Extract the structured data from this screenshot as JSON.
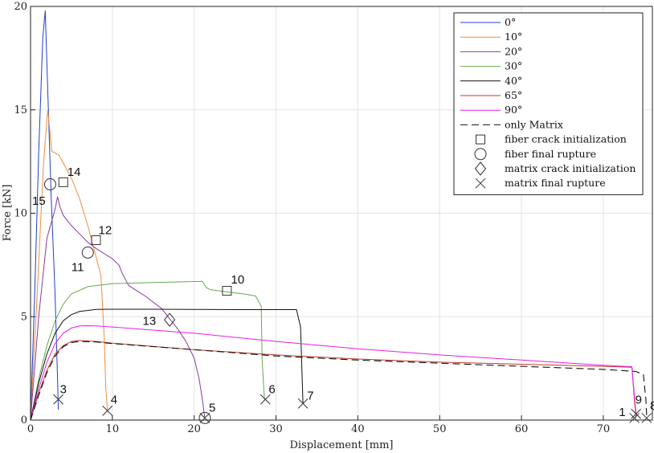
{
  "chart_data": {
    "type": "line",
    "xlabel": "Displacement [mm]",
    "ylabel": "Force [kN]",
    "xlim": [
      0,
      76
    ],
    "ylim": [
      0,
      20
    ],
    "xticks": [
      "0",
      "10",
      "20",
      "30",
      "40",
      "50",
      "60",
      "70"
    ],
    "yticks": [
      "0",
      "5",
      "10",
      "15",
      "20"
    ],
    "grid": true,
    "legend_position": "top-right",
    "series": [
      {
        "name": "0°",
        "color": "#1f3fcf",
        "dash": false,
        "x": [
          0,
          0.5,
          1.0,
          1.5,
          1.8,
          2.1,
          2.5,
          3.0,
          3.3,
          3.4
        ],
        "y": [
          0,
          6,
          13,
          18.5,
          19.8,
          16,
          11,
          6,
          2,
          0.5
        ]
      },
      {
        "name": "10°",
        "color": "#f28c3c",
        "dash": false,
        "x": [
          0,
          0.8,
          1.6,
          2.1,
          2.6,
          3.5,
          5,
          6,
          7,
          8,
          8.6,
          9,
          9.2,
          9.4
        ],
        "y": [
          0,
          6,
          12.5,
          15,
          13,
          12.8,
          11.7,
          10.7,
          9.4,
          7.9,
          7.0,
          4,
          1.5,
          0.5
        ]
      },
      {
        "name": "20°",
        "color": "#8a3a9e",
        "dash": false,
        "x": [
          0,
          1,
          2,
          3,
          3.3,
          3.6,
          4,
          5,
          6,
          7,
          8,
          10,
          10.8,
          11.2,
          12,
          14,
          16,
          17,
          18,
          19,
          20,
          20.6,
          21,
          21.2,
          21.3
        ],
        "y": [
          0,
          5,
          8.8,
          10.2,
          10.8,
          10.3,
          9.9,
          9.4,
          9.0,
          8.6,
          8.3,
          7.8,
          7.5,
          7.1,
          6.5,
          6.0,
          5.4,
          4.9,
          4.4,
          3.8,
          3.0,
          2.0,
          1.0,
          0.4,
          0.1
        ]
      },
      {
        "name": "30°",
        "color": "#6aa84f",
        "dash": false,
        "x": [
          0,
          1,
          2,
          3,
          4,
          5,
          7,
          10,
          15,
          20,
          21,
          21.5,
          22,
          24,
          26,
          27.5,
          28.2,
          28.3,
          28.5,
          28.6
        ],
        "y": [
          0,
          2.0,
          3.6,
          4.8,
          5.6,
          6.1,
          6.45,
          6.6,
          6.65,
          6.7,
          6.7,
          6.4,
          6.3,
          6.2,
          6.1,
          6.0,
          5.5,
          3.0,
          1.5,
          1.0
        ]
      },
      {
        "name": "40°",
        "color": "#111111",
        "dash": false,
        "x": [
          0,
          1,
          2,
          3,
          4,
          5,
          6,
          8,
          10,
          15,
          20,
          25,
          30,
          32.5,
          33,
          33.2,
          33.3
        ],
        "y": [
          0,
          1.8,
          3.2,
          4.2,
          4.8,
          5.1,
          5.25,
          5.35,
          5.36,
          5.36,
          5.35,
          5.34,
          5.34,
          5.34,
          4.5,
          2.0,
          0.8
        ]
      },
      {
        "name": "65°",
        "color": "#c0392b",
        "dash": false,
        "x": [
          0,
          1,
          2,
          3,
          4,
          5,
          6,
          8,
          10,
          20,
          30,
          40,
          50,
          60,
          70,
          73.5,
          73.8,
          74.0
        ],
        "y": [
          0,
          1.3,
          2.4,
          3.2,
          3.6,
          3.8,
          3.85,
          3.8,
          3.72,
          3.4,
          3.15,
          2.95,
          2.8,
          2.7,
          2.6,
          2.55,
          1.0,
          0.1
        ]
      },
      {
        "name": "90°",
        "color": "#e61ee6",
        "dash": false,
        "x": [
          0,
          1,
          2,
          3,
          4,
          5,
          6,
          7,
          8,
          10,
          20,
          30,
          40,
          50,
          60,
          70,
          73.5,
          73.8,
          74.0
        ],
        "y": [
          0,
          1.5,
          2.8,
          3.7,
          4.2,
          4.45,
          4.55,
          4.56,
          4.55,
          4.5,
          4.2,
          3.8,
          3.45,
          3.15,
          2.9,
          2.65,
          2.58,
          1.2,
          0.3
        ]
      },
      {
        "name": "only Matrix",
        "color": "#111111",
        "dash": true,
        "x": [
          0,
          1,
          2,
          3,
          4,
          5,
          6,
          8,
          10,
          20,
          30,
          40,
          50,
          60,
          70,
          74,
          74.9,
          75.2,
          75.3
        ],
        "y": [
          0,
          1.2,
          2.3,
          3.1,
          3.55,
          3.75,
          3.8,
          3.78,
          3.7,
          3.4,
          3.1,
          2.9,
          2.75,
          2.6,
          2.45,
          2.35,
          2.2,
          1.0,
          0.2
        ]
      }
    ],
    "marker_legend": [
      {
        "name": "fiber crack initialization",
        "marker": "square"
      },
      {
        "name": "fiber final rupture",
        "marker": "circle"
      },
      {
        "name": "matrix crack initialization",
        "marker": "diamond"
      },
      {
        "name": "matrix final rupture",
        "marker": "x"
      }
    ],
    "markers": [
      {
        "marker": "square",
        "x": 4.0,
        "y": 11.5
      },
      {
        "marker": "square",
        "x": 8.0,
        "y": 8.7
      },
      {
        "marker": "square",
        "x": 24.0,
        "y": 6.25
      },
      {
        "marker": "circle",
        "x": 2.4,
        "y": 11.4
      },
      {
        "marker": "circle",
        "x": 7.0,
        "y": 8.1
      },
      {
        "marker": "circle",
        "x": 21.3,
        "y": 0.1
      },
      {
        "marker": "diamond",
        "x": 17.0,
        "y": 4.85
      },
      {
        "marker": "x",
        "x": 3.4,
        "y": 1.0
      },
      {
        "marker": "x",
        "x": 9.4,
        "y": 0.45
      },
      {
        "marker": "x",
        "x": 21.3,
        "y": 0.1
      },
      {
        "marker": "x",
        "x": 28.7,
        "y": 1.0
      },
      {
        "marker": "x",
        "x": 33.3,
        "y": 0.8
      },
      {
        "marker": "x",
        "x": 73.8,
        "y": 0.1
      },
      {
        "marker": "x",
        "x": 74.0,
        "y": 0.3
      },
      {
        "marker": "x",
        "x": 75.3,
        "y": 0.1
      }
    ],
    "annotations": [
      {
        "text": "14",
        "x": 4.5,
        "y": 11.8
      },
      {
        "text": "15",
        "x": 0.2,
        "y": 10.4
      },
      {
        "text": "12",
        "x": 8.3,
        "y": 9.0
      },
      {
        "text": "11",
        "x": 5.0,
        "y": 7.2
      },
      {
        "text": "10",
        "x": 24.5,
        "y": 6.6
      },
      {
        "text": "13",
        "x": 13.7,
        "y": 4.6
      },
      {
        "text": "3",
        "x": 3.6,
        "y": 1.3
      },
      {
        "text": "4",
        "x": 9.8,
        "y": 0.8
      },
      {
        "text": "5",
        "x": 21.8,
        "y": 0.4
      },
      {
        "text": "6",
        "x": 29.1,
        "y": 1.3
      },
      {
        "text": "7",
        "x": 33.8,
        "y": 1.0
      },
      {
        "text": "1",
        "x": 71.9,
        "y": 0.2
      },
      {
        "text": "9",
        "x": 73.9,
        "y": 0.8
      },
      {
        "text": "8",
        "x": 75.7,
        "y": 0.5
      }
    ]
  }
}
